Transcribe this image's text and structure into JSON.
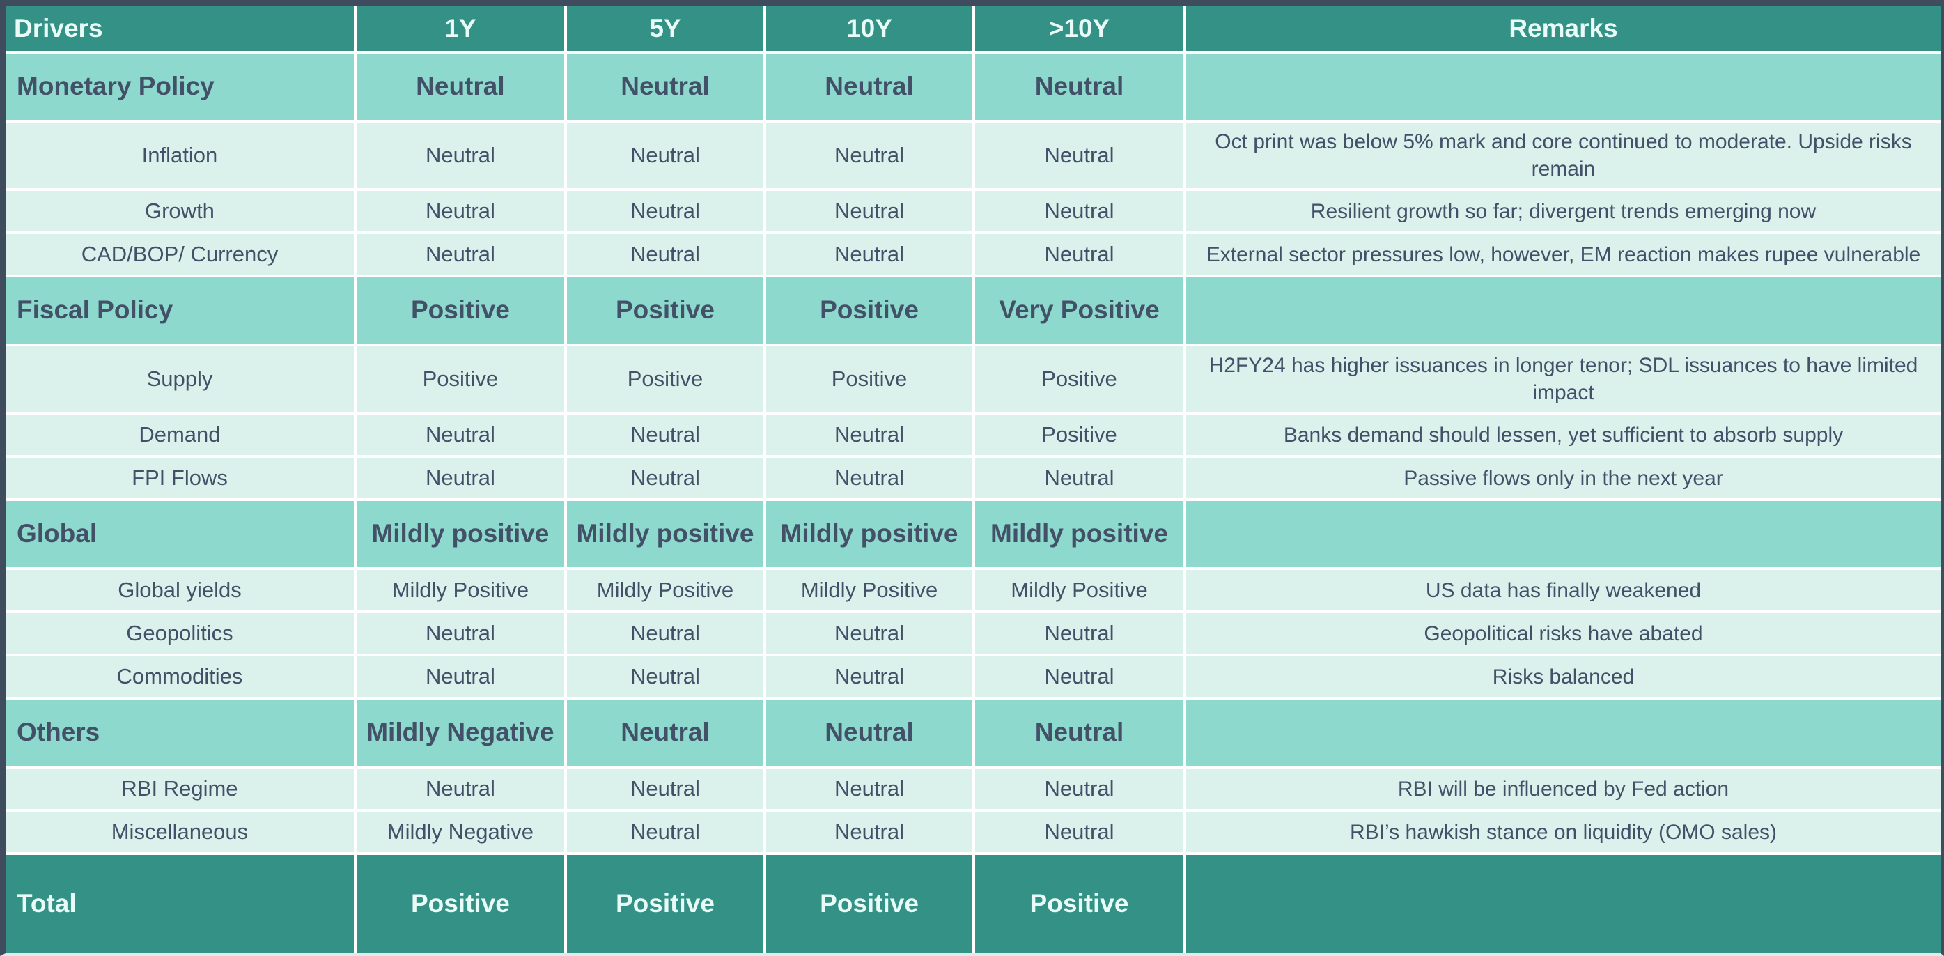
{
  "table": {
    "columns": [
      "Drivers",
      "1Y",
      "5Y",
      "10Y",
      ">10Y",
      "Remarks"
    ],
    "rows": [
      {
        "type": "section",
        "driver": "Monetary Policy",
        "values": [
          "Neutral",
          "Neutral",
          "Neutral",
          "Neutral"
        ],
        "remarks": ""
      },
      {
        "type": "item",
        "driver": "Inflation",
        "values": [
          "Neutral",
          "Neutral",
          "Neutral",
          "Neutral"
        ],
        "remarks": "Oct print was below 5% mark and core continued to moderate. Upside risks remain"
      },
      {
        "type": "item",
        "driver": "Growth",
        "values": [
          "Neutral",
          "Neutral",
          "Neutral",
          "Neutral"
        ],
        "remarks": "Resilient growth so far; divergent trends emerging now"
      },
      {
        "type": "item",
        "driver": "CAD/BOP/ Currency",
        "values": [
          "Neutral",
          "Neutral",
          "Neutral",
          "Neutral"
        ],
        "remarks": "External sector pressures low, however, EM reaction makes rupee vulnerable"
      },
      {
        "type": "section",
        "driver": "Fiscal Policy",
        "values": [
          "Positive",
          "Positive",
          "Positive",
          "Very Positive"
        ],
        "remarks": ""
      },
      {
        "type": "item",
        "driver": "Supply",
        "values": [
          "Positive",
          "Positive",
          "Positive",
          "Positive"
        ],
        "remarks": "H2FY24 has higher issuances in longer tenor; SDL issuances to have limited impact"
      },
      {
        "type": "item",
        "driver": "Demand",
        "values": [
          "Neutral",
          "Neutral",
          "Neutral",
          "Positive"
        ],
        "remarks": "Banks demand should lessen, yet sufficient to absorb supply"
      },
      {
        "type": "item",
        "driver": "FPI Flows",
        "values": [
          "Neutral",
          "Neutral",
          "Neutral",
          "Neutral"
        ],
        "remarks": "Passive flows only in the next year"
      },
      {
        "type": "section",
        "driver": "Global",
        "values": [
          "Mildly positive",
          "Mildly positive",
          "Mildly positive",
          "Mildly positive"
        ],
        "remarks": ""
      },
      {
        "type": "item",
        "driver": "Global yields",
        "values": [
          "Mildly Positive",
          "Mildly Positive",
          "Mildly Positive",
          "Mildly Positive"
        ],
        "remarks": "US data has finally weakened"
      },
      {
        "type": "item",
        "driver": "Geopolitics",
        "values": [
          "Neutral",
          "Neutral",
          "Neutral",
          "Neutral"
        ],
        "remarks": "Geopolitical risks have abated"
      },
      {
        "type": "item",
        "driver": "Commodities",
        "values": [
          "Neutral",
          "Neutral",
          "Neutral",
          "Neutral"
        ],
        "remarks": "Risks balanced"
      },
      {
        "type": "section",
        "driver": "Others",
        "values": [
          "Mildly Negative",
          "Neutral",
          "Neutral",
          "Neutral"
        ],
        "remarks": ""
      },
      {
        "type": "item",
        "driver": "RBI Regime",
        "values": [
          "Neutral",
          "Neutral",
          "Neutral",
          "Neutral"
        ],
        "remarks": "RBI will be influenced by Fed action"
      },
      {
        "type": "item",
        "driver": "Miscellaneous",
        "values": [
          "Mildly Negative",
          "Neutral",
          "Neutral",
          "Neutral"
        ],
        "remarks": "RBI’s hawkish stance on liquidity (OMO sales)"
      },
      {
        "type": "total",
        "driver": "Total",
        "values": [
          "Positive",
          "Positive",
          "Positive",
          "Positive"
        ],
        "remarks": ""
      }
    ]
  },
  "colors": {
    "frame": "#3e4c5e",
    "header_bg": "#339186",
    "section_bg": "#8ed9cd",
    "row_bg": "#daf1ec",
    "text_dark": "#425068",
    "text_light": "#e9fbf7",
    "divider": "#ffffff"
  }
}
